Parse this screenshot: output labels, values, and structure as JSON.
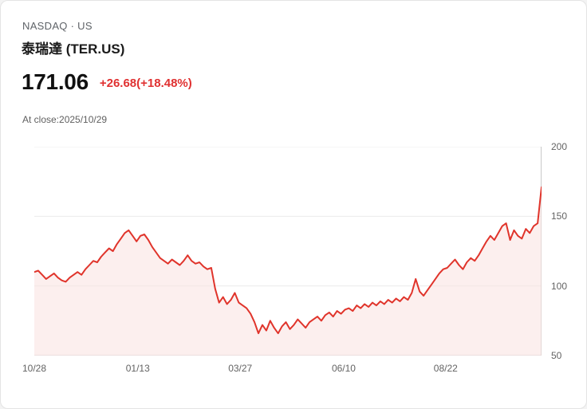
{
  "header": {
    "exchange": "NASDAQ · US",
    "title": "泰瑞達 (TER.US)",
    "price": "171.06",
    "change": "+26.68(+18.48%)",
    "as_of": "At close:2025/10/29"
  },
  "colors": {
    "line": "#e0342b",
    "area": "#f9e2e0",
    "area_opacity": 0.55,
    "change_text": "#e03131",
    "grid": "#ececec",
    "axis_line": "#c8c8c8",
    "tick_text": "#636363"
  },
  "chart_data": {
    "type": "line",
    "title": "泰瑞達 (TER.US) 1-year daily close price",
    "xlabel": "",
    "ylabel": "",
    "ylim": [
      50,
      200
    ],
    "grid": "horizontal",
    "legend": "none",
    "y_ticks": [
      200,
      150,
      100,
      50
    ],
    "x_tick_labels": [
      "10/28",
      "01/13",
      "03/27",
      "06/10",
      "08/22"
    ],
    "x_tick_positions": [
      0.0,
      0.204,
      0.406,
      0.61,
      0.811
    ],
    "series": [
      {
        "name": "TER.US",
        "values": [
          110,
          111,
          108,
          105,
          107,
          109,
          106,
          104,
          103,
          106,
          108,
          110,
          108,
          112,
          115,
          118,
          117,
          121,
          124,
          127,
          125,
          130,
          134,
          138,
          140,
          136,
          132,
          136,
          137,
          133,
          128,
          124,
          120,
          118,
          116,
          119,
          117,
          115,
          118,
          122,
          118,
          116,
          117,
          114,
          112,
          113,
          98,
          88,
          92,
          87,
          90,
          95,
          88,
          86,
          84,
          80,
          74,
          66,
          72,
          68,
          75,
          70,
          66,
          71,
          74,
          69,
          72,
          76,
          73,
          70,
          74,
          76,
          78,
          75,
          79,
          81,
          78,
          82,
          80,
          83,
          84,
          82,
          86,
          84,
          87,
          85,
          88,
          86,
          89,
          87,
          90,
          88,
          91,
          89,
          92,
          90,
          95,
          105,
          96,
          93,
          97,
          101,
          105,
          109,
          112,
          113,
          116,
          119,
          115,
          112,
          117,
          120,
          118,
          122,
          127,
          132,
          136,
          133,
          138,
          143,
          145,
          133,
          140,
          136,
          134,
          141,
          138,
          143,
          145,
          171
        ]
      }
    ]
  }
}
